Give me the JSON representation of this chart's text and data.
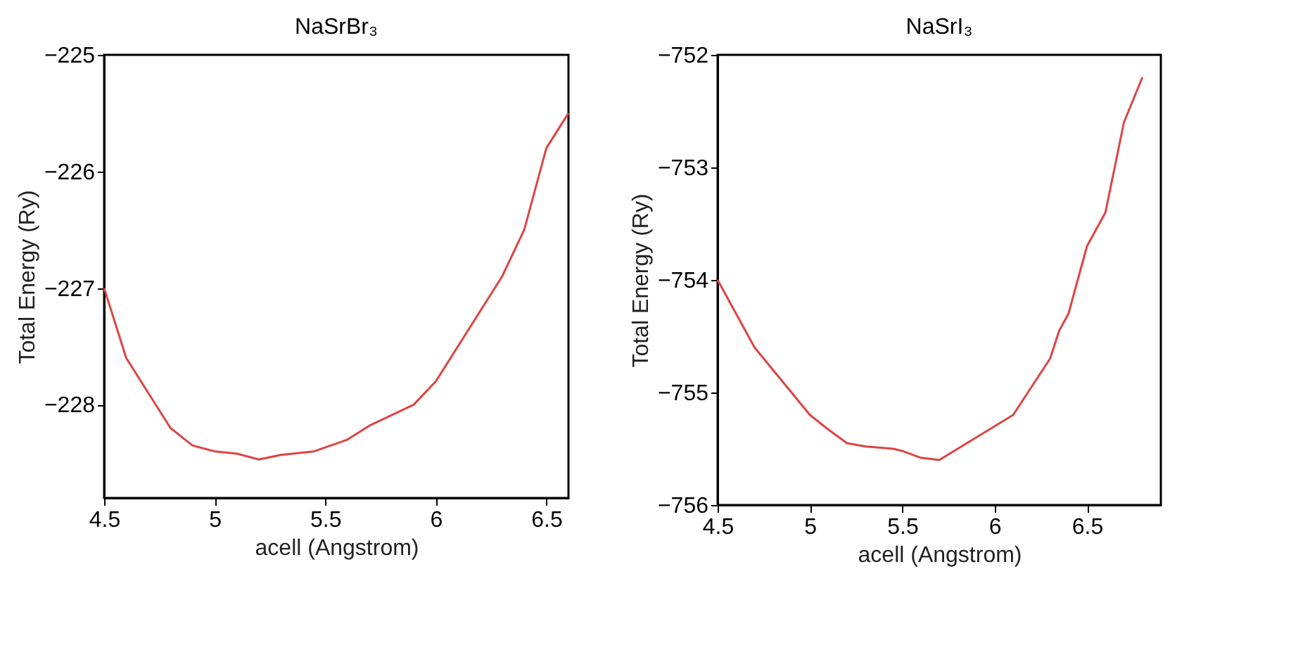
{
  "chart_data": [
    {
      "type": "line",
      "title": "NaSrBr₃",
      "xlabel": "acell (Angstrom)",
      "ylabel": "Total Energy (Ry)",
      "xlim": [
        4.5,
        6.6
      ],
      "xticks": [
        4.5,
        5,
        5.5,
        6,
        6.5
      ],
      "ylim": [
        -228.8,
        -225
      ],
      "yticks": [
        -228,
        -227,
        -226,
        -225
      ],
      "series": [
        {
          "color": "#dd4444",
          "x": [
            4.5,
            4.6,
            4.8,
            4.9,
            5.0,
            5.1,
            5.2,
            5.3,
            5.45,
            5.6,
            5.7,
            5.9,
            6.0,
            6.1,
            6.2,
            6.3,
            6.4,
            6.5,
            6.6
          ],
          "values": [
            -227.0,
            -227.6,
            -228.2,
            -228.35,
            -228.4,
            -228.42,
            -228.47,
            -228.43,
            -228.4,
            -228.3,
            -228.18,
            -228.0,
            -227.8,
            -227.5,
            -227.2,
            -226.9,
            -226.5,
            -225.8,
            -225.5
          ]
        }
      ]
    },
    {
      "type": "line",
      "title": "NaSrI₃",
      "xlabel": "acell (Angstrom)",
      "ylabel": "Total Energy (Ry)",
      "xlim": [
        4.5,
        6.9
      ],
      "xticks": [
        4.5,
        5,
        5.5,
        6,
        6.5
      ],
      "ylim": [
        -756,
        -752
      ],
      "yticks": [
        -756,
        -755,
        -754,
        -753,
        -752
      ],
      "series": [
        {
          "color": "#dd4444",
          "x": [
            4.5,
            4.6,
            4.7,
            4.8,
            4.9,
            5.0,
            5.1,
            5.2,
            5.3,
            5.45,
            5.5,
            5.6,
            5.7,
            5.8,
            5.9,
            6.0,
            6.1,
            6.2,
            6.3,
            6.35,
            6.4,
            6.5,
            6.6,
            6.7,
            6.8
          ],
          "values": [
            -754.0,
            -754.3,
            -754.6,
            -754.8,
            -755.0,
            -755.2,
            -755.33,
            -755.45,
            -755.48,
            -755.5,
            -755.52,
            -755.58,
            -755.6,
            -755.5,
            -755.4,
            -755.3,
            -755.2,
            -754.95,
            -754.7,
            -754.45,
            -754.3,
            -753.7,
            -753.4,
            -752.6,
            -752.2
          ]
        }
      ]
    }
  ]
}
